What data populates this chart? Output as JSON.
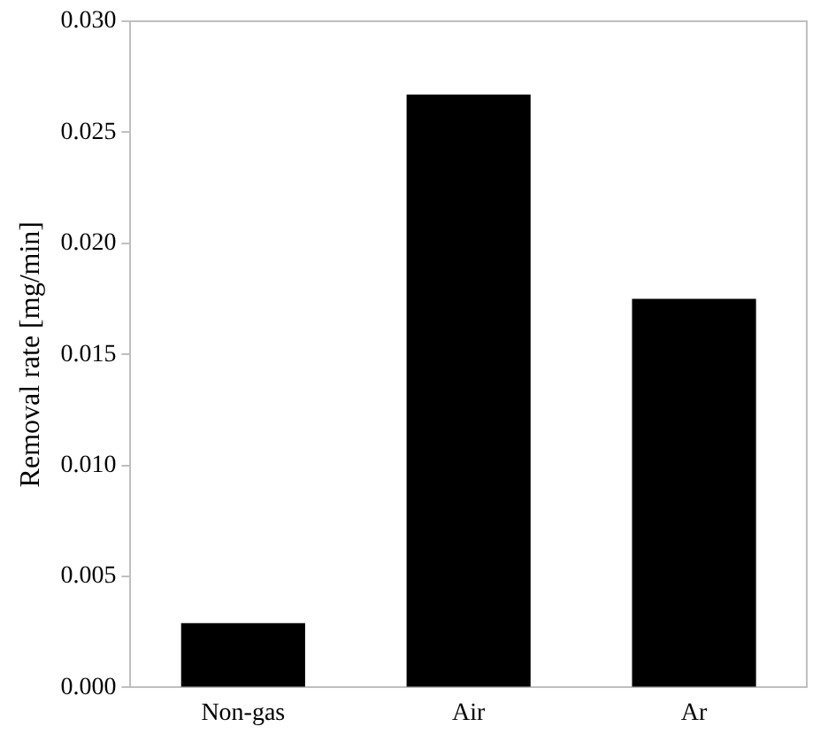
{
  "chart_data": {
    "type": "bar",
    "ylabel": "Removal rate [mg/min]",
    "categories": [
      "Non-gas",
      "Air",
      "Ar"
    ],
    "values": [
      0.0029,
      0.0267,
      0.0175
    ],
    "color": "#000000",
    "ylim": [
      0,
      0.03
    ],
    "yticks": [
      {
        "value": 0,
        "label": "0.000"
      },
      {
        "value": 0.005,
        "label": "0.005"
      },
      {
        "value": 0.01,
        "label": "0.010"
      },
      {
        "value": 0.015,
        "label": "0.015"
      },
      {
        "value": 0.02,
        "label": "0.020"
      },
      {
        "value": 0.025,
        "label": "0.025"
      },
      {
        "value": 0.03,
        "label": "0.030"
      }
    ],
    "grid": false,
    "legend": false
  }
}
